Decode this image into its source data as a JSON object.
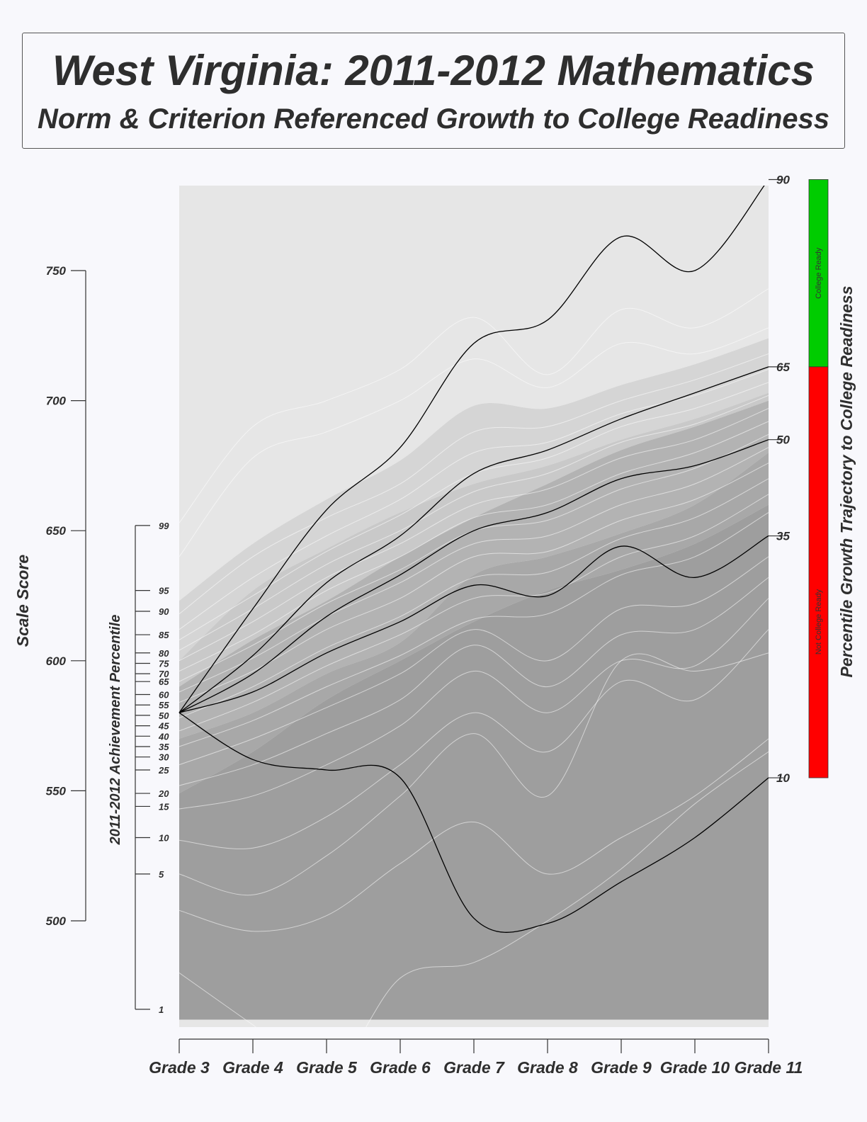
{
  "title": "West Virginia: 2011-2012 Mathematics",
  "subtitle": "Norm & Criterion Referenced Growth to College Readiness",
  "chart_data": {
    "type": "line",
    "scale_score_axis": {
      "label": "Scale Score",
      "ticks": [
        500,
        550,
        600,
        650,
        700,
        750
      ]
    },
    "achievement_axis": {
      "label": "2011-2012 Achievement Percentile",
      "ticks": [
        {
          "label": "99",
          "score": 652
        },
        {
          "label": "95",
          "score": 627
        },
        {
          "label": "90",
          "score": 619
        },
        {
          "label": "85",
          "score": 610
        },
        {
          "label": "80",
          "score": 603
        },
        {
          "label": "75",
          "score": 599
        },
        {
          "label": "70",
          "score": 595
        },
        {
          "label": "65",
          "score": 592
        },
        {
          "label": "60",
          "score": 587
        },
        {
          "label": "55",
          "score": 583
        },
        {
          "label": "50",
          "score": 579
        },
        {
          "label": "45",
          "score": 575
        },
        {
          "label": "40",
          "score": 571
        },
        {
          "label": "35",
          "score": 567
        },
        {
          "label": "30",
          "score": 563
        },
        {
          "label": "25",
          "score": 558
        },
        {
          "label": "20",
          "score": 549
        },
        {
          "label": "15",
          "score": 544
        },
        {
          "label": "10",
          "score": 532
        },
        {
          "label": "5",
          "score": 518
        },
        {
          "label": "1",
          "score": 466
        }
      ]
    },
    "grades": [
      "Grade 3",
      "Grade 4",
      "Grade 5",
      "Grade 6",
      "Grade 7",
      "Grade 8",
      "Grade 9",
      "Grade 10",
      "Grade 11"
    ],
    "ylim": [
      462,
      785
    ],
    "trajectory_axis": {
      "label": "Percentile Growth Trajectory to College Readiness",
      "ticks": [
        {
          "label": "90",
          "score": 785
        },
        {
          "label": "65",
          "score": 713
        },
        {
          "label": "50",
          "score": 685
        },
        {
          "label": "35",
          "score": 648
        },
        {
          "label": "10",
          "score": 555
        }
      ],
      "cut_score": 713
    },
    "readiness_bar": {
      "college_ready_label": "College Ready",
      "not_college_ready_label": "Not College Ready",
      "college_ready_color": "#00cc00",
      "not_college_ready_color": "#ff0000"
    },
    "start_score": 580,
    "trajectories": [
      {
        "percentile": 90,
        "values": [
          580,
          620,
          658,
          682,
          722,
          731,
          763,
          750,
          785
        ]
      },
      {
        "percentile": 65,
        "values": [
          580,
          602,
          630,
          648,
          672,
          681,
          693,
          703,
          713
        ]
      },
      {
        "percentile": 50,
        "values": [
          580,
          595,
          617,
          633,
          650,
          657,
          670,
          675,
          685
        ]
      },
      {
        "percentile": 35,
        "values": [
          580,
          588,
          603,
          615,
          629,
          625,
          644,
          632,
          648
        ]
      },
      {
        "percentile": 10,
        "values": [
          580,
          562,
          558,
          555,
          501,
          499,
          515,
          532,
          555
        ]
      }
    ],
    "band_shades": [
      "#9e9e9e",
      "#a8a8a8",
      "#b3b3b3",
      "#c9c9c9",
      "#d5d5d5",
      "#e6e6e6"
    ],
    "bands": [
      [
        462,
        462,
        462,
        462,
        462,
        462,
        462,
        462,
        462
      ],
      [
        549,
        565,
        585,
        600,
        615,
        627,
        635,
        645,
        660
      ],
      [
        570,
        580,
        595,
        607,
        633,
        640,
        649,
        660,
        680
      ],
      [
        590,
        608,
        623,
        640,
        655,
        668,
        681,
        690,
        700
      ],
      [
        600,
        627,
        643,
        657,
        668,
        675,
        685,
        693,
        703
      ],
      [
        623,
        645,
        662,
        677,
        698,
        697,
        706,
        714,
        724
      ],
      [
        785,
        785,
        785,
        785,
        785,
        785,
        785,
        785,
        785
      ]
    ],
    "grid_lines": [
      [
        653,
        690,
        700,
        712,
        732,
        710,
        735,
        728,
        743
      ],
      [
        640,
        678,
        688,
        700,
        716,
        705,
        722,
        718,
        728
      ],
      [
        618,
        640,
        655,
        668,
        688,
        690,
        700,
        708,
        718
      ],
      [
        612,
        632,
        648,
        662,
        680,
        684,
        695,
        702,
        712
      ],
      [
        608,
        625,
        642,
        656,
        672,
        678,
        690,
        697,
        707
      ],
      [
        604,
        620,
        637,
        650,
        665,
        672,
        684,
        691,
        702
      ],
      [
        600,
        615,
        632,
        645,
        660,
        666,
        678,
        685,
        697
      ],
      [
        596,
        610,
        627,
        640,
        655,
        660,
        672,
        680,
        692
      ],
      [
        592,
        606,
        622,
        635,
        650,
        654,
        666,
        674,
        687
      ],
      [
        588,
        601,
        617,
        630,
        645,
        648,
        660,
        668,
        682
      ],
      [
        584,
        596,
        612,
        624,
        640,
        642,
        654,
        662,
        676
      ],
      [
        578,
        590,
        605,
        617,
        632,
        634,
        647,
        655,
        670
      ],
      [
        573,
        584,
        598,
        610,
        624,
        626,
        640,
        648,
        664
      ],
      [
        567,
        577,
        590,
        602,
        616,
        618,
        633,
        640,
        657
      ],
      [
        560,
        570,
        582,
        595,
        612,
        600,
        620,
        622,
        640
      ],
      [
        552,
        560,
        572,
        585,
        606,
        590,
        610,
        612,
        632
      ],
      [
        543,
        548,
        560,
        575,
        596,
        580,
        600,
        598,
        624
      ],
      [
        531,
        528,
        540,
        560,
        580,
        565,
        592,
        585,
        612
      ],
      [
        518,
        510,
        525,
        548,
        572,
        548,
        600,
        596,
        603
      ],
      [
        504,
        496,
        502,
        522,
        538,
        518,
        532,
        548,
        570
      ],
      [
        480,
        460,
        440,
        478,
        484,
        500,
        520,
        545,
        565
      ]
    ]
  }
}
